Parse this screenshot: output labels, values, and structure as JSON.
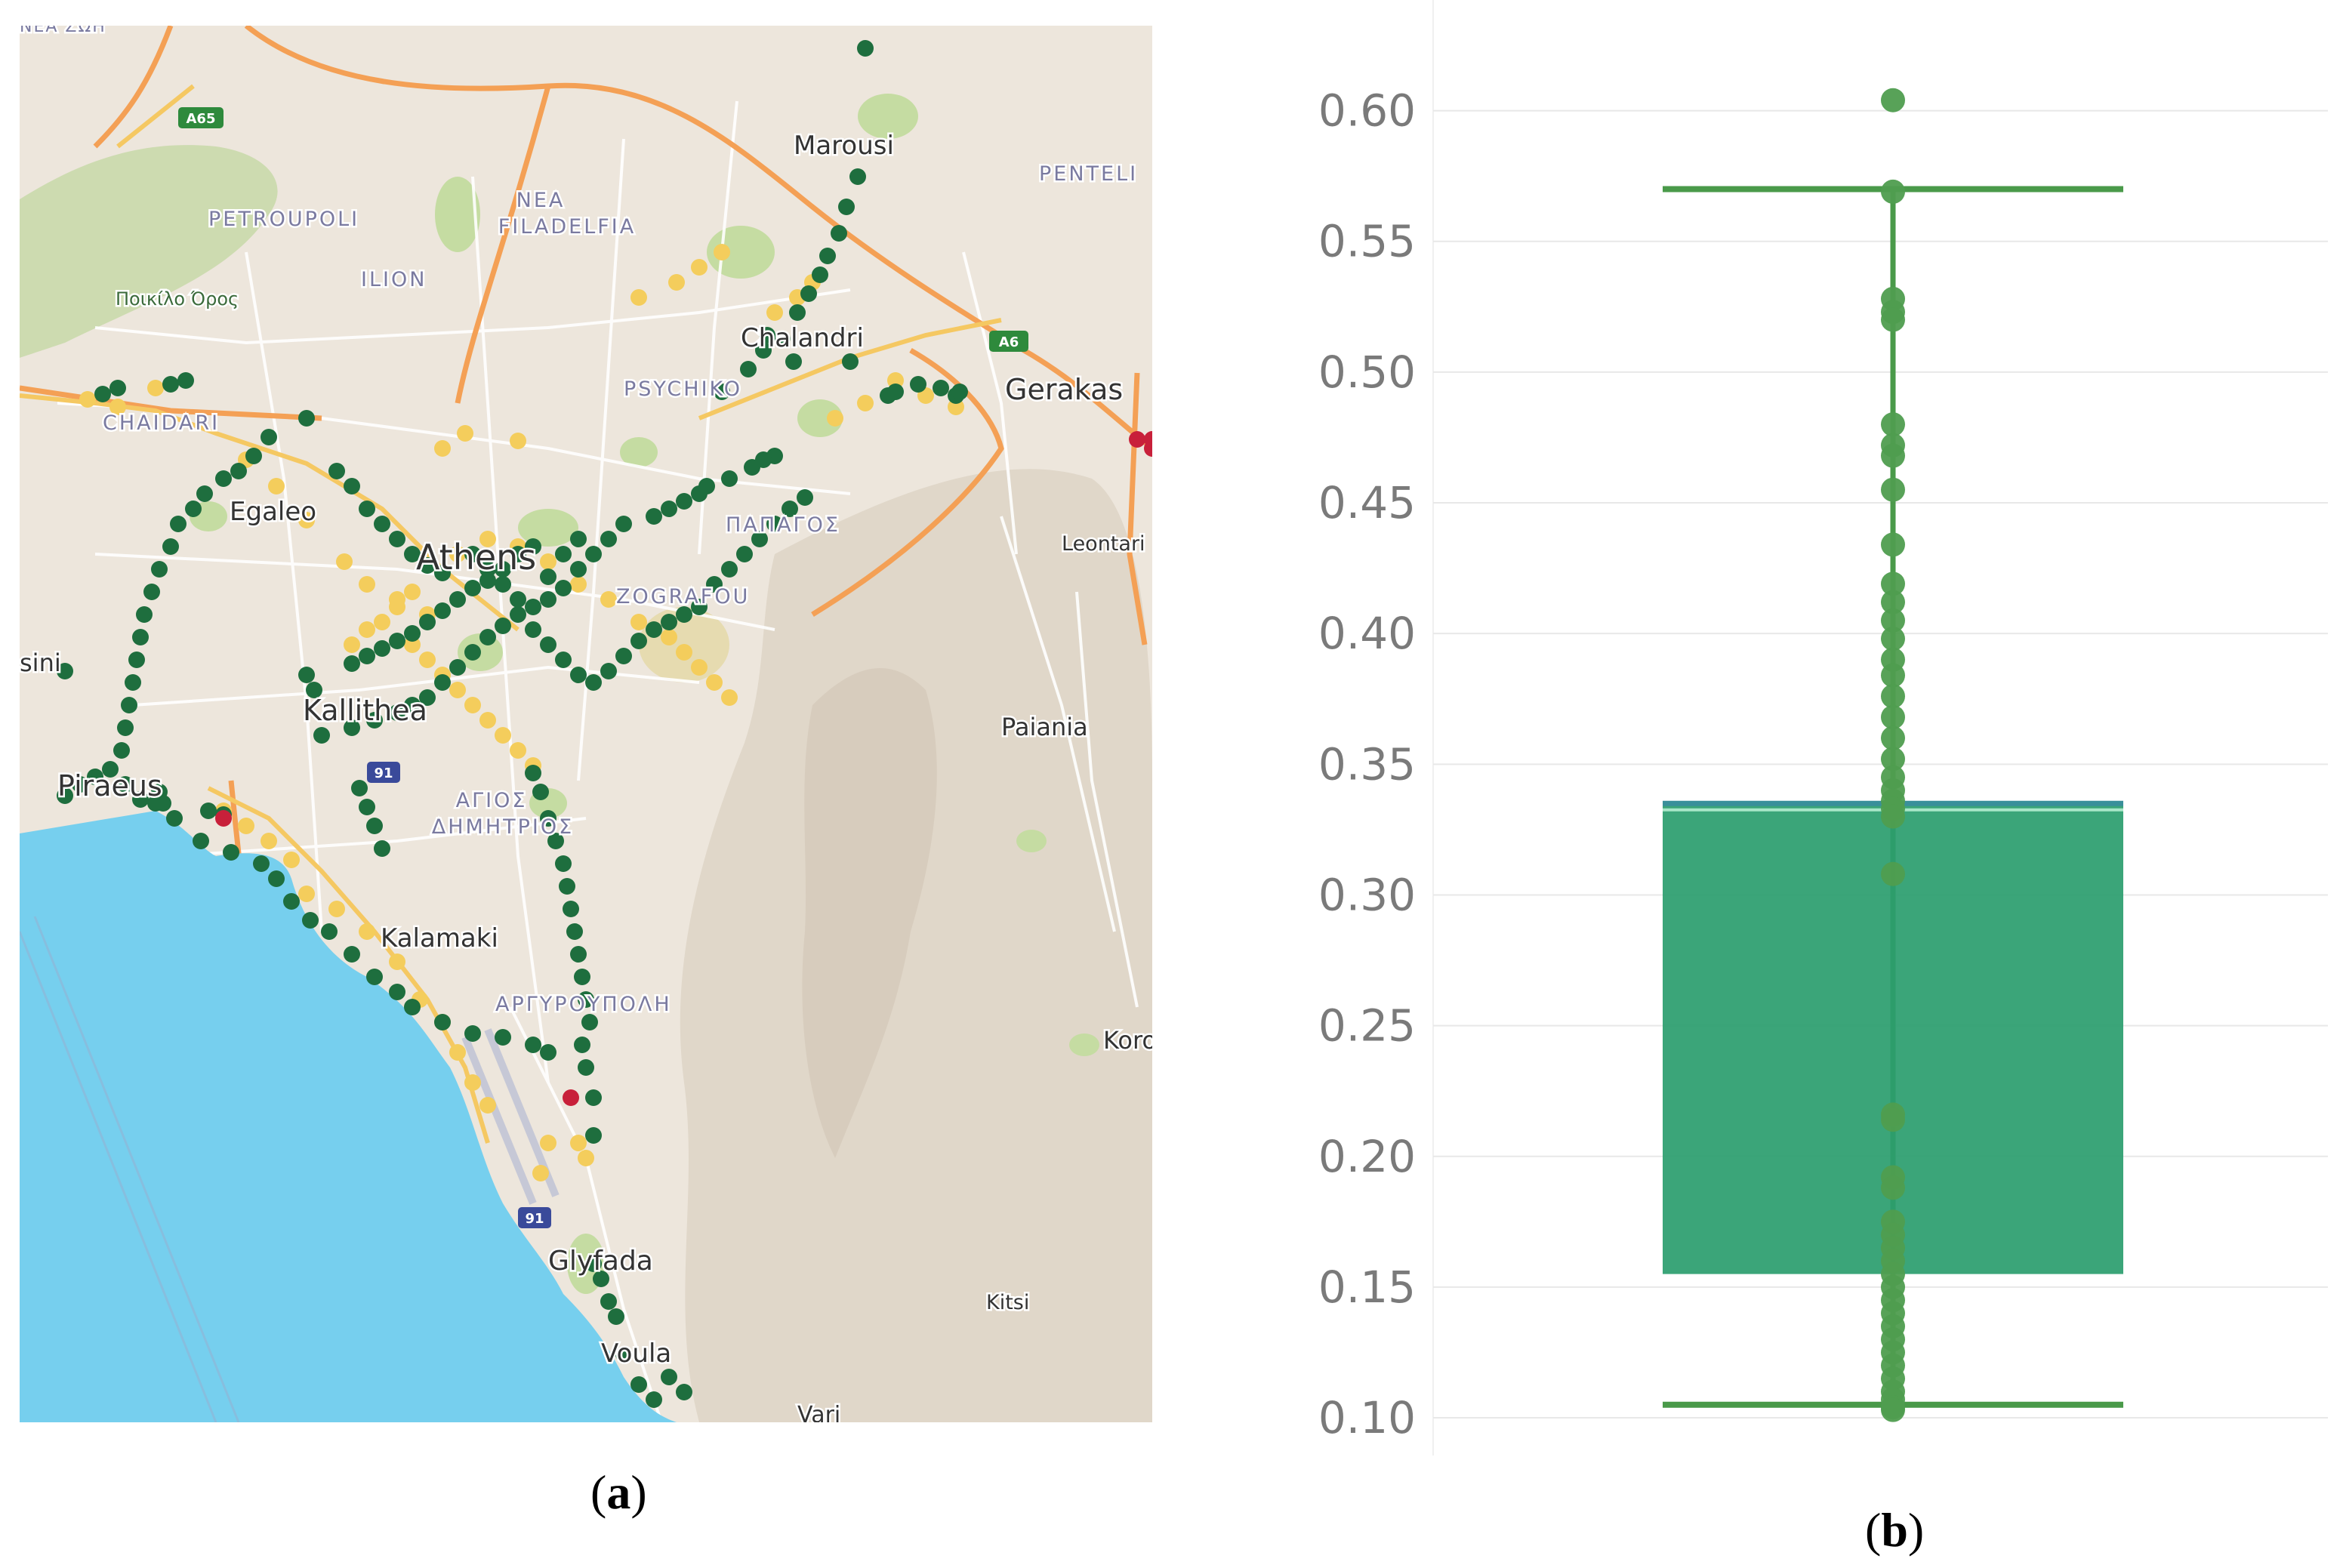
{
  "panels": {
    "a_caption": "(a)",
    "b_caption": "(b)"
  },
  "colors": {
    "sea": "#76cfee",
    "land": "#ede6dc",
    "park": "#c5dca2",
    "hills": "#dcd2c4",
    "motorway": "#f4a055",
    "primary_road": "#f5c862",
    "minor_road": "#ffffff",
    "airport": "#cfd2dc",
    "status_good": "#1e6e3e",
    "status_medium": "#f4cd5c",
    "status_bad": "#c8203a",
    "box_fill": "#2a9d6e",
    "box_line": "#4a9a4a",
    "median_line": "#3a8f9a",
    "points": "#4f9d4f",
    "grid": "#e8e8e8",
    "tick_text": "#7a7a7a"
  },
  "map": {
    "labels": {
      "marousi": "Marousi",
      "penteli": "PENTELI",
      "nea_filadelfia": "NEA\nFILADELFIA",
      "petroupoli": "PETROUPOLI",
      "poikilo_oros": "Ποικίλο Όρος",
      "ilion": "ILION",
      "chalandri": "Chalandri",
      "psychiko": "PSYCHIKO",
      "gerakas": "Gerakas",
      "chaidari": "CHAIDARI",
      "egaleo": "Egaleo",
      "athens": "Athens",
      "papagos": "ΠΑΠΑΓΟΣ",
      "leontari": "Leontari",
      "zografou": "ZOGRAFOU",
      "sini": "sini",
      "kallithea": "Kallithea",
      "paiania": "Paiania",
      "piraeus": "Piraeus",
      "agios_dimitrios": "ΑΓΙΟΣ\nΔΗΜΗΤΡΙΟΣ",
      "kalamaki": "Kalamaki",
      "argyroupoli": "ΑΡΓΥΡΟΥΠΟΛΗ",
      "koropi": "Koro",
      "glyfada": "Glyfada",
      "kitsi": "Kitsi",
      "voula": "Voula",
      "vari": "Vari",
      "nea_zoi": "NEA ZΩH"
    },
    "road_shields": {
      "a65": "A65",
      "a6": "A6",
      "r91_north": "91",
      "r91_south": "91"
    }
  },
  "chart_data": {
    "type": "box",
    "title": "",
    "xlabel": "",
    "ylabel": "",
    "ylim": [
      0.085,
      0.625
    ],
    "yticks": [
      0.1,
      0.15,
      0.2,
      0.25,
      0.3,
      0.35,
      0.4,
      0.45,
      0.5,
      0.55,
      0.6
    ],
    "ytick_labels": [
      "0.10",
      "0.15",
      "0.20",
      "0.25",
      "0.30",
      "0.35",
      "0.40",
      "0.45",
      "0.50",
      "0.55",
      "0.60"
    ],
    "grid": true,
    "box": {
      "lower_fence": 0.105,
      "q1": 0.155,
      "median": 0.334,
      "q3": 0.335,
      "upper_fence": 0.57
    },
    "points": [
      0.604,
      0.569,
      0.528,
      0.523,
      0.52,
      0.48,
      0.472,
      0.468,
      0.455,
      0.434,
      0.419,
      0.412,
      0.405,
      0.398,
      0.39,
      0.384,
      0.376,
      0.368,
      0.36,
      0.352,
      0.345,
      0.34,
      0.336,
      0.333,
      0.33,
      0.308,
      0.216,
      0.214,
      0.192,
      0.188,
      0.175,
      0.17,
      0.165,
      0.16,
      0.155,
      0.15,
      0.145,
      0.14,
      0.135,
      0.13,
      0.125,
      0.12,
      0.115,
      0.11,
      0.107,
      0.104,
      0.103
    ]
  }
}
